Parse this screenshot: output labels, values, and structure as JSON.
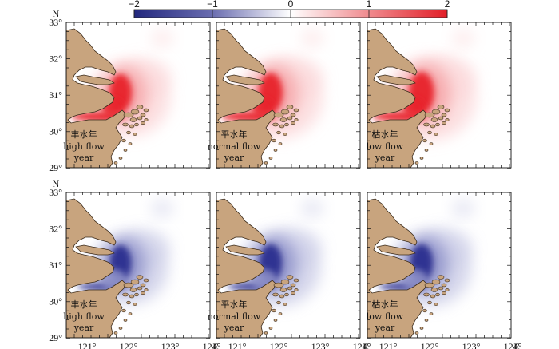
{
  "colorbar": {
    "ticks": [
      "−2",
      "−1",
      "0",
      "1",
      "2"
    ],
    "values": [
      -2,
      -1,
      0,
      1,
      2
    ],
    "colors": {
      "negative": "#2b2f8f",
      "neutral": "#ffffff",
      "positive": "#e8242b"
    }
  },
  "axes": {
    "lat_labels": [
      "33°",
      "32°",
      "31°",
      "30°",
      "29°"
    ],
    "north_label": "N",
    "lon_labels": [
      "121°",
      "122°",
      "123°",
      "124°"
    ],
    "east_label": "E"
  },
  "colors": {
    "land": "#c8a47e",
    "coast": "#3a2a1a",
    "sea": "#ffffff"
  },
  "panels": [
    {
      "sign": "positive",
      "intensity": 0.9,
      "label_cn": "丰水年",
      "label_en1": "high flow",
      "label_en2": "year"
    },
    {
      "sign": "positive",
      "intensity": 0.95,
      "label_cn": "平水年",
      "label_en1": "normal flow",
      "label_en2": "year"
    },
    {
      "sign": "positive",
      "intensity": 1.0,
      "label_cn": "枯水年",
      "label_en1": "low flow",
      "label_en2": "year"
    },
    {
      "sign": "negative",
      "intensity": 0.85,
      "label_cn": "丰水年",
      "label_en1": "high flow",
      "label_en2": "year"
    },
    {
      "sign": "negative",
      "intensity": 0.9,
      "label_cn": "平水年",
      "label_en1": "normal flow",
      "label_en2": "year"
    },
    {
      "sign": "negative",
      "intensity": 0.9,
      "label_cn": "枯水年",
      "label_en1": "low flow",
      "label_en2": "year"
    }
  ]
}
